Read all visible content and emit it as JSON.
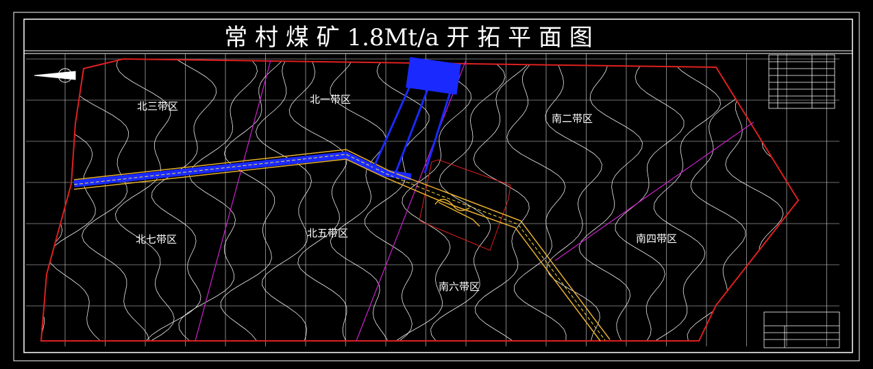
{
  "title": "常 村 煤 矿 1.8Mt/a 开 拓 平 面 图",
  "districts": [
    "北三带区",
    "北一带区",
    "南二带区",
    "北七带区",
    "北五带区",
    "南四带区",
    "南六带区"
  ]
}
